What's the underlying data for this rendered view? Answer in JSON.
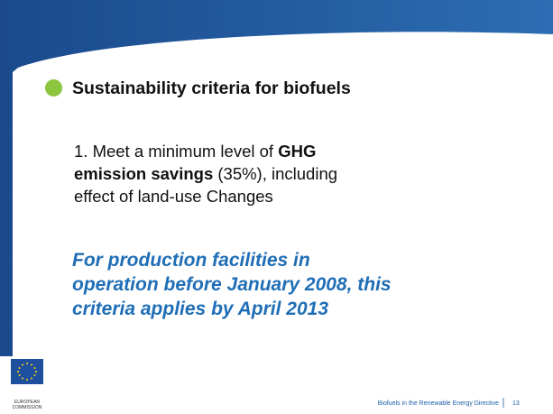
{
  "slide": {
    "heading": "Sustainability criteria for biofuels",
    "paragraph": {
      "before": "1. Meet a minimum level of ",
      "bold": "GHG emission savings",
      "after": " (35%), including effect of land-use Changes"
    },
    "highlight": "For production facilities in operation before January 2008, this criteria applies by April 2013",
    "logo": {
      "line1": "EUROPEAN",
      "line2": "COMMISSION"
    },
    "footer": {
      "title": "Biofuels in the Renewable Energy Directive",
      "page": "13"
    }
  }
}
